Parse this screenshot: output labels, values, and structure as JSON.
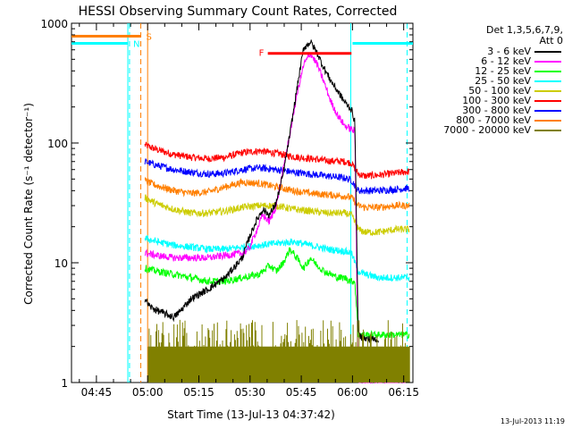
{
  "chart_data": {
    "type": "line",
    "title": "HESSI Observing Summary Count Rates, Corrected",
    "xlabel": "Start Time (13-Jul-13 04:37:42)",
    "ylabel": "Corrected Count Rate (s⁻¹ detector⁻¹)",
    "x_unit": "minutes after 04:37:42",
    "xlim": [
      0,
      100
    ],
    "ylim": [
      1,
      1000
    ],
    "y_scale": "log",
    "x_ticks": [
      {
        "x": 7.3,
        "label": "04:45"
      },
      {
        "x": 22.3,
        "label": "05:00"
      },
      {
        "x": 37.3,
        "label": "05:15"
      },
      {
        "x": 52.3,
        "label": "05:30"
      },
      {
        "x": 67.3,
        "label": "05:45"
      },
      {
        "x": 82.3,
        "label": "06:00"
      },
      {
        "x": 97.3,
        "label": "06:15"
      }
    ],
    "y_ticks": [
      {
        "y": 1,
        "label": "1"
      },
      {
        "y": 10,
        "label": "10"
      },
      {
        "y": 100,
        "label": "100"
      },
      {
        "y": 1000,
        "label": "1000"
      }
    ],
    "legend": {
      "placement": "right",
      "header": [
        "Det 1,3,5,6,7,9,",
        "Att 0"
      ],
      "entries": [
        {
          "label": "3 - 6 keV",
          "color": "#000000"
        },
        {
          "label": "6 - 12 keV",
          "color": "#ff00ff"
        },
        {
          "label": "12 - 25 keV",
          "color": "#00ff00"
        },
        {
          "label": "25 - 50 keV",
          "color": "#00ffff"
        },
        {
          "label": "50 - 100 keV",
          "color": "#cccc00"
        },
        {
          "label": "100 - 300 keV",
          "color": "#ff0000"
        },
        {
          "label": "300 - 800 keV",
          "color": "#0000ff"
        },
        {
          "label": "800 - 7000 keV",
          "color": "#ff7f00"
        },
        {
          "label": "7000 - 20000 keV",
          "color": "#808000"
        }
      ]
    },
    "series": [
      {
        "color": "#ff0000",
        "x": [
          21.5,
          25,
          30,
          35,
          40,
          45,
          50,
          55,
          60,
          65,
          70,
          75,
          80,
          82,
          84,
          86,
          90,
          95,
          99
        ],
        "values": [
          96,
          88,
          80,
          76,
          74,
          76,
          83,
          86,
          82,
          77,
          74,
          71,
          70,
          68,
          55,
          53,
          54,
          56,
          58
        ]
      },
      {
        "color": "#0000ff",
        "x": [
          21.5,
          25,
          30,
          35,
          40,
          45,
          50,
          55,
          60,
          65,
          70,
          75,
          80,
          82,
          84,
          86,
          90,
          95,
          99
        ],
        "values": [
          70,
          65,
          60,
          57,
          55,
          56,
          60,
          62,
          60,
          57,
          55,
          53,
          51,
          49,
          40,
          40,
          40,
          41,
          42
        ]
      },
      {
        "color": "#ff7f00",
        "x": [
          21.5,
          25,
          30,
          35,
          40,
          45,
          50,
          55,
          60,
          65,
          70,
          75,
          80,
          82,
          84,
          86,
          90,
          95,
          99
        ],
        "values": [
          48,
          44,
          40,
          38,
          39,
          43,
          47,
          46,
          43,
          40,
          38,
          37,
          36,
          35,
          30,
          29,
          29,
          30,
          30
        ]
      },
      {
        "color": "#cccc00",
        "x": [
          21.5,
          25,
          30,
          35,
          40,
          45,
          50,
          55,
          60,
          65,
          70,
          75,
          80,
          82,
          84,
          86,
          90,
          95,
          99
        ],
        "values": [
          35,
          31,
          28,
          26,
          26,
          27,
          29,
          30,
          30,
          28,
          27,
          26,
          26,
          25,
          19,
          18,
          18,
          19,
          19
        ]
      },
      {
        "color": "#00ffff",
        "x": [
          21.5,
          25,
          30,
          35,
          40,
          45,
          50,
          55,
          60,
          65,
          70,
          75,
          80,
          82,
          84,
          86,
          90,
          95,
          99
        ],
        "values": [
          16,
          15,
          14,
          13.5,
          13,
          13,
          13.5,
          14,
          14.5,
          15,
          14,
          13,
          12.5,
          12,
          8.5,
          8,
          7.5,
          7.5,
          7.5
        ]
      },
      {
        "color": "#ff00ff",
        "x": [
          21.5,
          25,
          30,
          35,
          40,
          45,
          50,
          52,
          54,
          56,
          58,
          60,
          62,
          64,
          66,
          68,
          70,
          72,
          74,
          76,
          78,
          80,
          82,
          83,
          84,
          86,
          90,
          95,
          99
        ],
        "values": [
          12,
          11.5,
          11,
          11,
          11,
          11.5,
          12,
          13,
          18,
          25,
          22,
          30,
          60,
          120,
          250,
          450,
          560,
          450,
          320,
          220,
          170,
          140,
          130,
          125,
          1,
          1,
          1,
          1,
          1
        ]
      },
      {
        "color": "#00ff00",
        "x": [
          21.5,
          25,
          30,
          35,
          40,
          45,
          50,
          55,
          58,
          60,
          62,
          64,
          66,
          68,
          70,
          72,
          74,
          76,
          78,
          80,
          82,
          83,
          84,
          86,
          90,
          95,
          99
        ],
        "values": [
          9,
          8.5,
          8,
          7.5,
          7,
          7,
          7.5,
          8,
          9.5,
          8.5,
          10,
          13,
          11,
          9,
          11,
          9.5,
          8.5,
          8,
          7.5,
          7.5,
          7,
          7,
          2.5,
          2.5,
          2.5,
          2.5,
          2.5
        ]
      },
      {
        "color": "#000000",
        "x": [
          21.5,
          23,
          25,
          28,
          30,
          32,
          35,
          40,
          45,
          50,
          52,
          54,
          56,
          58,
          60,
          62,
          64,
          66,
          68,
          70,
          72,
          74,
          76,
          78,
          80,
          82,
          83,
          84,
          86,
          90
        ],
        "values": [
          5,
          4.3,
          4,
          3.7,
          3.5,
          4,
          5,
          6,
          7.5,
          11,
          16,
          22,
          28,
          25,
          32,
          55,
          120,
          280,
          620,
          700,
          560,
          420,
          330,
          270,
          220,
          190,
          150,
          2.5,
          2.3,
          2.3
        ]
      },
      {
        "color": "#808000",
        "x": [
          22.5,
          99
        ],
        "values": [
          2,
          2
        ]
      }
    ],
    "flag_bars": [
      {
        "label": "S",
        "color": "#ff7f00",
        "y": 780,
        "x_start": 0,
        "x_end": 20.3
      },
      {
        "label": "N",
        "color": "#00ffff",
        "y": 680,
        "x_start": 0,
        "x_end": 16.5
      },
      {
        "color": "#00ffff",
        "y": 680,
        "x_start": 82.3,
        "x_end": 100
      },
      {
        "label": "F",
        "color": "#ff0000",
        "y": 560,
        "x_start": 57.5,
        "x_end": 82
      }
    ],
    "vertical_markers": [
      {
        "color": "#00ffff",
        "style": "solid",
        "x": 16.5
      },
      {
        "color": "#00ffff",
        "style": "dashed",
        "x": 17
      },
      {
        "color": "#ff7f00",
        "style": "dashed",
        "x": 20.3
      },
      {
        "color": "#ff7f00",
        "style": "solid",
        "x": 22.3
      },
      {
        "color": "#00ffff",
        "style": "solid",
        "x": 81.8
      },
      {
        "color": "#00ffff",
        "style": "dashed",
        "x": 98.3
      }
    ]
  },
  "timestamp": "13-Jul-2013 11:19"
}
